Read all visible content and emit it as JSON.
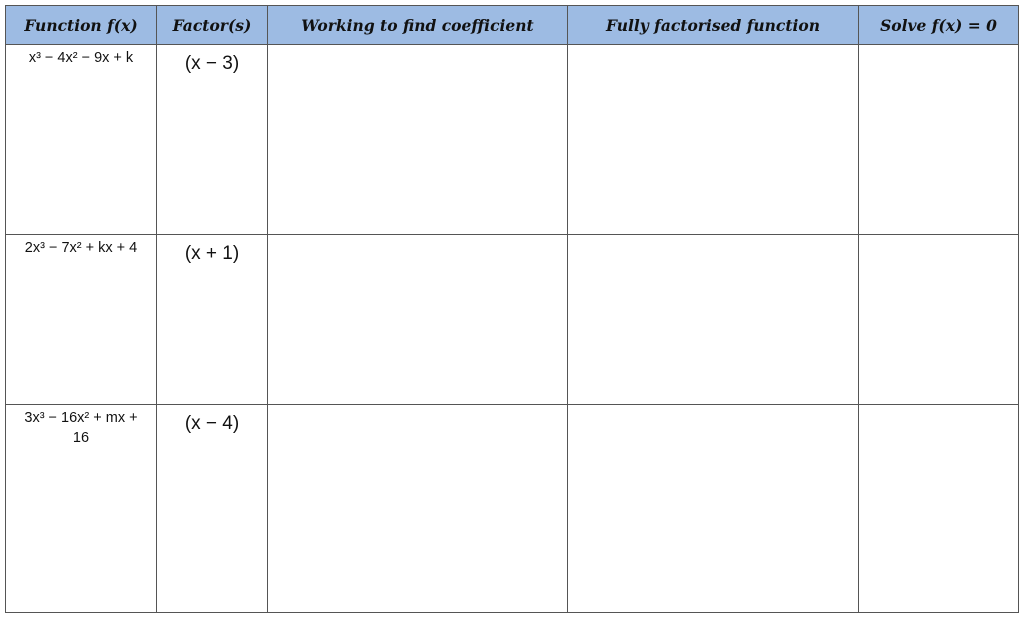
{
  "header": {
    "columns": [
      "Function f(x)",
      "Factor(s)",
      "Working to find coefficient",
      "Fully factorised function",
      "Solve f(x) = 0"
    ]
  },
  "header_bg": "#9dbbe3",
  "rows": [
    {
      "function": "x³ − 4x² − 9x + k",
      "factor": "(x − 3)",
      "working": "",
      "factorised": "",
      "solve": ""
    },
    {
      "function": "2x³ − 7x² + kx + 4",
      "factor": "(x + 1)",
      "working": "",
      "factorised": "",
      "solve": ""
    },
    {
      "function": "3x³ − 16x² + mx + 16",
      "factor": "(x − 4)",
      "working": "",
      "factorised": "",
      "solve": ""
    }
  ]
}
